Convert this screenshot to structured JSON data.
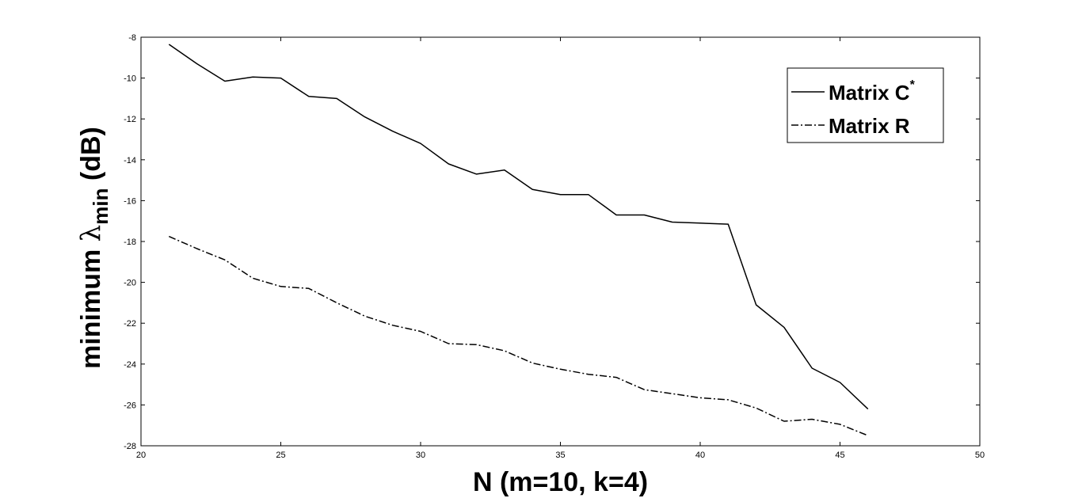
{
  "chart_data": {
    "type": "line",
    "title": "",
    "xlabel": "N (m=10, k=4)",
    "ylabel": {
      "prefix": "minimum ",
      "symbol": "λ",
      "subscript": "min",
      "suffix": " (dB)"
    },
    "xlim": [
      20,
      50
    ],
    "ylim": [
      -28,
      -8
    ],
    "xticks": [
      20,
      25,
      30,
      35,
      40,
      45,
      50
    ],
    "yticks": [
      -8,
      -10,
      -12,
      -14,
      -16,
      -18,
      -20,
      -22,
      -24,
      -26,
      -28
    ],
    "grid": false,
    "legend_position": "top-right",
    "x": [
      21,
      22,
      23,
      24,
      25,
      26,
      27,
      28,
      29,
      30,
      31,
      32,
      33,
      34,
      35,
      36,
      37,
      38,
      39,
      40,
      41,
      42,
      43,
      44,
      45,
      46
    ],
    "series": [
      {
        "name": "Matrix C",
        "name_superscript": "*",
        "style": "solid",
        "color": "#000000",
        "values": [
          -8.35,
          -9.3,
          -10.15,
          -9.95,
          -10.0,
          -10.9,
          -11.0,
          -11.9,
          -12.6,
          -13.2,
          -14.2,
          -14.7,
          -14.5,
          -15.45,
          -15.7,
          -15.7,
          -16.7,
          -16.7,
          -17.05,
          -17.1,
          -17.15,
          -21.1,
          -22.2,
          -24.2,
          -24.9,
          -26.2
        ]
      },
      {
        "name": "Matrix R",
        "name_superscript": "",
        "style": "dashdot",
        "color": "#000000",
        "values": [
          -17.75,
          -18.35,
          -18.9,
          -19.8,
          -20.2,
          -20.3,
          -21.0,
          -21.65,
          -22.1,
          -22.4,
          -23.0,
          -23.05,
          -23.35,
          -23.95,
          -24.25,
          -24.5,
          -24.65,
          -25.25,
          -25.45,
          -25.65,
          -25.75,
          -26.15,
          -26.8,
          -26.7,
          -26.95,
          -27.5
        ]
      }
    ]
  }
}
